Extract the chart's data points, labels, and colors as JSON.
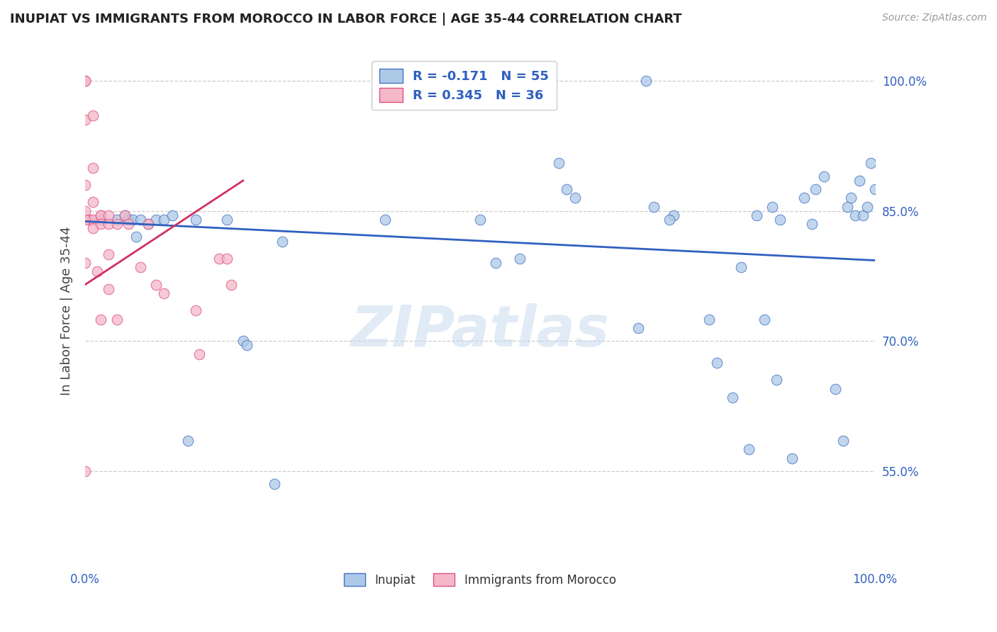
{
  "title": "INUPIAT VS IMMIGRANTS FROM MOROCCO IN LABOR FORCE | AGE 35-44 CORRELATION CHART",
  "source": "Source: ZipAtlas.com",
  "ylabel": "In Labor Force | Age 35-44",
  "xmin": 0.0,
  "xmax": 1.0,
  "ymin": 0.44,
  "ymax": 1.03,
  "yticks": [
    0.55,
    0.7,
    0.85,
    1.0
  ],
  "ytick_labels": [
    "55.0%",
    "70.0%",
    "85.0%",
    "100.0%"
  ],
  "xtick_labels_show": [
    "0.0%",
    "100.0%"
  ],
  "legend_r_blue": "R = -0.171",
  "legend_n_blue": "N = 55",
  "legend_r_pink": "R = 0.345",
  "legend_n_pink": "N = 36",
  "blue_scatter_x": [
    0.04,
    0.05,
    0.055,
    0.06,
    0.065,
    0.07,
    0.08,
    0.09,
    0.1,
    0.11,
    0.13,
    0.14,
    0.18,
    0.2,
    0.205,
    0.24,
    0.25,
    0.38,
    0.5,
    0.52,
    0.55,
    0.6,
    0.61,
    0.62,
    0.7,
    0.71,
    0.745,
    0.8,
    0.82,
    0.83,
    0.84,
    0.85,
    0.87,
    0.875,
    0.895,
    0.91,
    0.92,
    0.925,
    0.935,
    0.95,
    0.96,
    0.965,
    0.97,
    0.975,
    0.98,
    0.985,
    0.99,
    0.995,
    1.0,
    0.72,
    0.79,
    0.86,
    0.74,
    0.88,
    0.02
  ],
  "blue_scatter_y": [
    0.84,
    0.845,
    0.84,
    0.84,
    0.82,
    0.84,
    0.835,
    0.84,
    0.84,
    0.845,
    0.585,
    0.84,
    0.84,
    0.7,
    0.695,
    0.535,
    0.815,
    0.84,
    0.84,
    0.79,
    0.795,
    0.905,
    0.875,
    0.865,
    0.715,
    1.0,
    0.845,
    0.675,
    0.635,
    0.785,
    0.575,
    0.845,
    0.855,
    0.655,
    0.565,
    0.865,
    0.835,
    0.875,
    0.89,
    0.645,
    0.585,
    0.855,
    0.865,
    0.845,
    0.885,
    0.845,
    0.855,
    0.905,
    0.875,
    0.855,
    0.725,
    0.725,
    0.84,
    0.84,
    0.84
  ],
  "pink_scatter_x": [
    0.0,
    0.0,
    0.0,
    0.0,
    0.0,
    0.0,
    0.005,
    0.01,
    0.01,
    0.01,
    0.01,
    0.01,
    0.015,
    0.02,
    0.02,
    0.02,
    0.02,
    0.03,
    0.03,
    0.03,
    0.03,
    0.04,
    0.04,
    0.05,
    0.055,
    0.07,
    0.08,
    0.09,
    0.1,
    0.14,
    0.145,
    0.17,
    0.18,
    0.185,
    0.0,
    0.0
  ],
  "pink_scatter_y": [
    1.0,
    1.0,
    0.955,
    0.88,
    0.85,
    0.79,
    0.84,
    0.96,
    0.9,
    0.86,
    0.84,
    0.83,
    0.78,
    0.845,
    0.845,
    0.835,
    0.725,
    0.845,
    0.835,
    0.8,
    0.76,
    0.835,
    0.725,
    0.845,
    0.835,
    0.785,
    0.835,
    0.765,
    0.755,
    0.735,
    0.685,
    0.795,
    0.795,
    0.765,
    0.84,
    0.55
  ],
  "blue_line_x": [
    0.0,
    1.0
  ],
  "blue_line_y": [
    0.838,
    0.793
  ],
  "pink_line_x": [
    0.0,
    0.2
  ],
  "pink_line_y": [
    0.765,
    0.885
  ],
  "blue_color": "#adc9e8",
  "blue_edge_color": "#4472c4",
  "pink_color": "#f4b8c8",
  "pink_edge_color": "#e05080",
  "blue_line_color": "#3060c0",
  "pink_line_color": "#d03060",
  "watermark_text": "ZIPatlas",
  "background_color": "#ffffff",
  "grid_color": "#c8c8c8",
  "title_color": "#222222",
  "source_color": "#999999",
  "tick_color": "#3060c0",
  "ylabel_color": "#444444"
}
